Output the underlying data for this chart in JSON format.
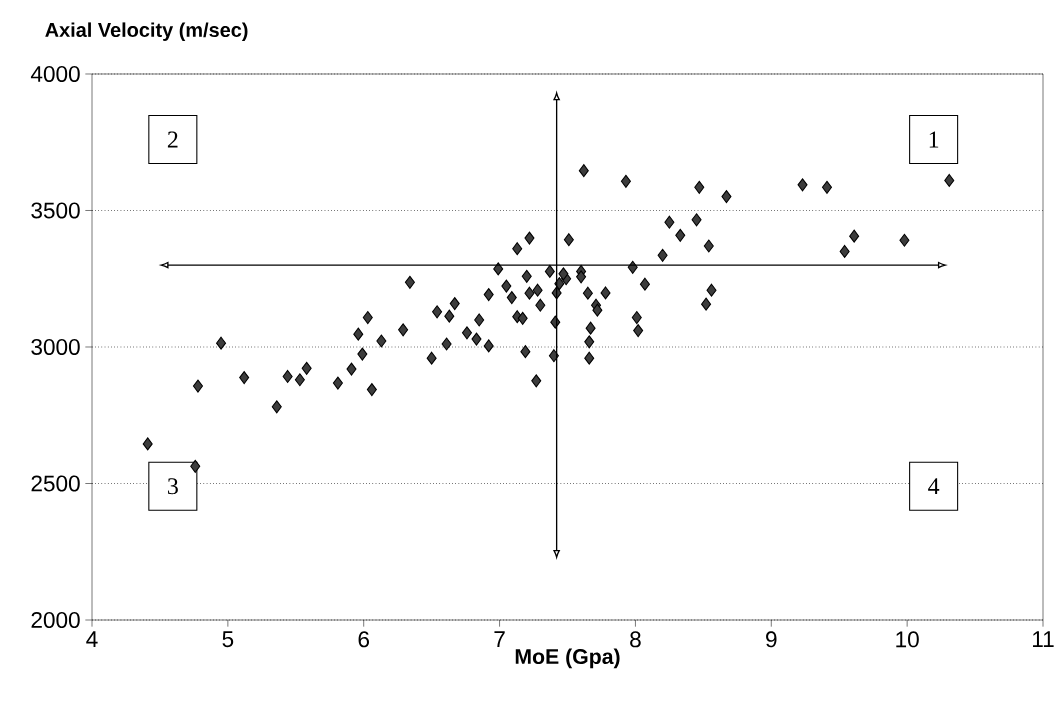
{
  "chart_data": {
    "type": "scatter",
    "ylabel": "Axial Velocity (m/sec)",
    "xlabel": "MoE (Gpa)",
    "xlim": [
      4,
      11
    ],
    "xticks": [
      4,
      5,
      6,
      7,
      8,
      9,
      10,
      11
    ],
    "ylim": [
      2000,
      4000
    ],
    "yticks": [
      2000,
      2500,
      3000,
      3500,
      4000
    ],
    "grid": "y",
    "marker": "diamond",
    "color": "#3c3c3c",
    "x": [
      4.41,
      4.76,
      4.78,
      4.95,
      5.12,
      5.36,
      5.44,
      5.53,
      5.58,
      5.81,
      5.91,
      5.96,
      5.99,
      6.03,
      6.06,
      6.13,
      6.29,
      6.34,
      6.54,
      6.67,
      6.63,
      6.5,
      6.61,
      6.76,
      6.83,
      6.92,
      6.85,
      6.92,
      6.99,
      7.05,
      7.09,
      7.13,
      7.17,
      7.19,
      7.27,
      7.2,
      7.13,
      7.22,
      7.22,
      7.3,
      7.28,
      7.37,
      7.41,
      7.4,
      7.44,
      7.49,
      7.42,
      7.47,
      7.51,
      7.6,
      7.6,
      7.62,
      7.65,
      7.78,
      7.71,
      7.72,
      7.67,
      7.66,
      7.66,
      7.93,
      7.98,
      8.07,
      8.01,
      8.02,
      8.2,
      8.25,
      8.33,
      8.45,
      8.47,
      8.67,
      8.54,
      8.56,
      8.52,
      9.23,
      9.41,
      9.61,
      9.54,
      9.98,
      10.31
    ],
    "values": [
      2645,
      2563,
      2857,
      3014,
      2888,
      2781,
      2892,
      2880,
      2922,
      2868,
      2919,
      3047,
      2974,
      3108,
      2844,
      3022,
      3063,
      3237,
      3129,
      3159,
      3113,
      2959,
      3011,
      3052,
      3029,
      3004,
      3099,
      3192,
      3286,
      3223,
      3181,
      3111,
      3105,
      2983,
      2876,
      3259,
      3360,
      3399,
      3197,
      3153,
      3208,
      3277,
      3091,
      2968,
      3232,
      3250,
      3198,
      3268,
      3393,
      3277,
      3257,
      3646,
      3197,
      3198,
      3153,
      3135,
      3069,
      3019,
      2959,
      3607,
      3292,
      3230,
      3108,
      3060,
      3336,
      3457,
      3409,
      3466,
      3585,
      3551,
      3370,
      3208,
      3157,
      3594,
      3585,
      3406,
      3350,
      3391,
      3610
    ],
    "ref_lines": [
      {
        "axis": "x",
        "value": 7.42,
        "line_style": "solid",
        "color": "#000000"
      },
      {
        "axis": "y",
        "value": 3300,
        "line_style": "solid",
        "color": "#000000"
      }
    ],
    "annotations": [
      "1",
      "2",
      "3",
      "4"
    ]
  }
}
